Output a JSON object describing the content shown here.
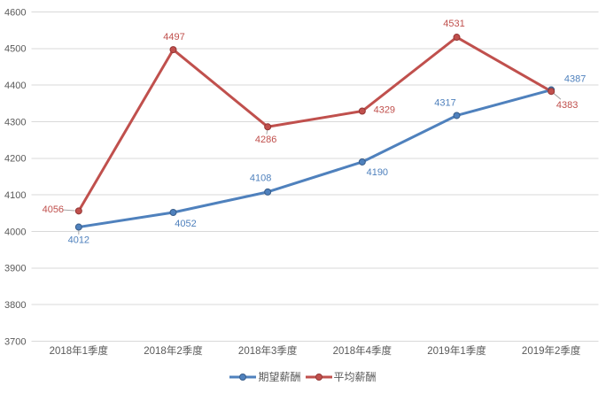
{
  "chart_data": {
    "type": "line",
    "title": "",
    "xlabel": "",
    "ylabel": "",
    "categories": [
      "2018年1季度",
      "2018年2季度",
      "2018年3季度",
      "2018年4季度",
      "2019年1季度",
      "2019年2季度"
    ],
    "series": [
      {
        "id": "expected-salary",
        "name": "期望薪酬",
        "color": "#4F81BD",
        "marker_border": "#385D8A",
        "marker": "circle",
        "values": [
          4012,
          4052,
          4108,
          4190,
          4317,
          4387
        ],
        "label_offsets": [
          [
            0,
            14
          ],
          [
            14,
            12
          ],
          [
            -8,
            -16
          ],
          [
            17,
            11
          ],
          [
            -13,
            -15
          ],
          [
            27,
            -13
          ]
        ],
        "leader_indices": [
          0
        ]
      },
      {
        "id": "average-salary",
        "name": "平均薪酬",
        "color": "#C0504D",
        "marker_border": "#943634",
        "marker": "circle",
        "values": [
          4056,
          4497,
          4286,
          4329,
          4531,
          4383
        ],
        "label_offsets": [
          [
            -29,
            -2
          ],
          [
            1,
            -15
          ],
          [
            -2,
            14
          ],
          [
            25,
            -2
          ],
          [
            -3,
            -16
          ],
          [
            18,
            15
          ]
        ],
        "leader_indices": [
          0,
          2,
          5
        ]
      }
    ],
    "ylim": [
      3700,
      4600
    ],
    "ytick_step": 100,
    "yticks": [
      3700,
      3800,
      3900,
      4000,
      4100,
      4200,
      4300,
      4400,
      4500,
      4600
    ],
    "grid": true,
    "legend_position": "bottom",
    "line_width": 3,
    "colors": {
      "grid": "#D9D9D9",
      "axis_text": "#595959",
      "leader": "#A6A6A6",
      "background": "#FFFFFF"
    }
  }
}
